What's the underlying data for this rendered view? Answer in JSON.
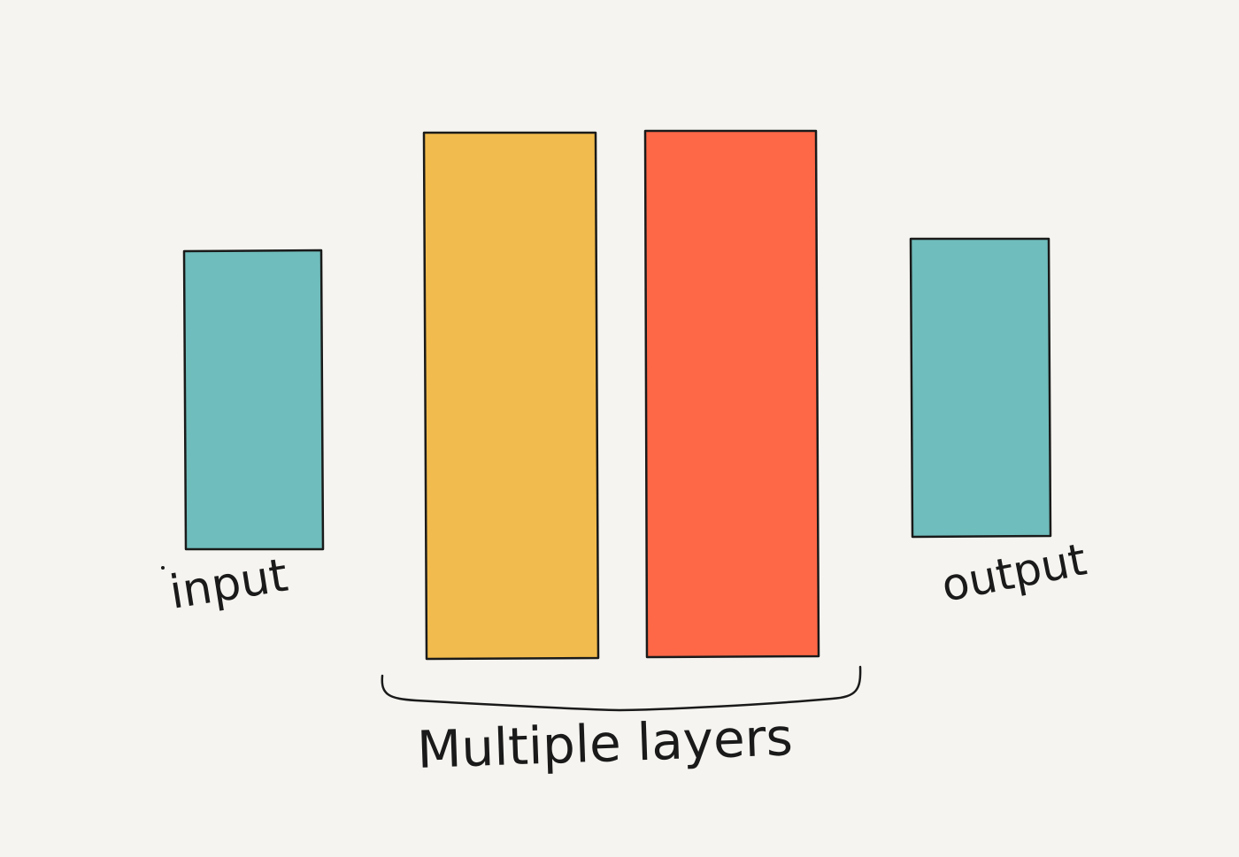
{
  "diagram": {
    "background": "#f5f4f0",
    "stroke_color": "#1a1a1a",
    "layers": [
      {
        "id": "input",
        "label": "input",
        "fill": "#6fbdbc"
      },
      {
        "id": "hidden1",
        "label": "",
        "fill": "#f1bb4d"
      },
      {
        "id": "hidden2",
        "label": "",
        "fill": "#ff6847"
      },
      {
        "id": "output",
        "label": "output",
        "fill": "#6fbdbc"
      }
    ],
    "group": {
      "label": "Multiple layers",
      "members": [
        "hidden1",
        "hidden2"
      ]
    }
  }
}
